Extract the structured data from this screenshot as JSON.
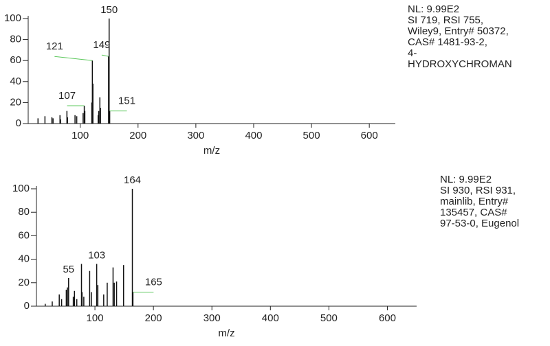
{
  "chart_data": [
    {
      "type": "bar",
      "xlabel": "m/z",
      "xlim": [
        10,
        645
      ],
      "ylim": [
        0,
        100
      ],
      "xticks": [
        100,
        200,
        300,
        400,
        500,
        600
      ],
      "yticks": [
        0,
        20,
        40,
        60,
        80,
        100
      ],
      "color": "#111111",
      "label_color": "#5cc85c",
      "x": [
        27,
        39,
        51,
        53,
        65,
        66,
        77,
        78,
        91,
        94,
        105,
        107,
        108,
        120,
        121,
        122,
        131,
        132,
        134,
        135,
        149,
        150,
        151
      ],
      "values": [
        5,
        7,
        6,
        5,
        8,
        4,
        12,
        6,
        8,
        7,
        10,
        17,
        12,
        20,
        60,
        38,
        8,
        12,
        25,
        15,
        64,
        100,
        12
      ],
      "peak_labels": [
        21,
        20,
        14,
        11,
        22
      ],
      "annotations": [
        "NL: 9.99E2",
        "SI 719, RSI 755,",
        "Wiley9, Entry# 50372,",
        "CAS# 1481-93-2,",
        "4-",
        "HYDROXYCHROMAN"
      ]
    },
    {
      "type": "bar",
      "xlabel": "m/z",
      "xlim": [
        0,
        650
      ],
      "ylim": [
        0,
        100
      ],
      "xticks": [
        100,
        200,
        300,
        400,
        500,
        600
      ],
      "yticks": [
        0,
        20,
        40,
        60,
        80,
        100
      ],
      "color": "#111111",
      "label_color": "#5cc85c",
      "x": [
        15,
        27,
        39,
        43,
        51,
        53,
        55,
        63,
        65,
        69,
        77,
        78,
        81,
        91,
        94,
        103,
        105,
        115,
        121,
        131,
        133,
        137,
        149,
        164,
        165
      ],
      "values": [
        2,
        4,
        10,
        6,
        14,
        16,
        24,
        8,
        13,
        6,
        36,
        12,
        8,
        30,
        12,
        36,
        18,
        10,
        20,
        33,
        20,
        21,
        35,
        100,
        12
      ],
      "peak_labels": [
        23,
        15,
        6,
        24
      ],
      "annotations": [
        "NL: 9.99E2",
        "SI 930, RSI 931,",
        "mainlib, Entry#",
        "135457, CAS#",
        "97-53-0, Eugenol"
      ]
    }
  ]
}
